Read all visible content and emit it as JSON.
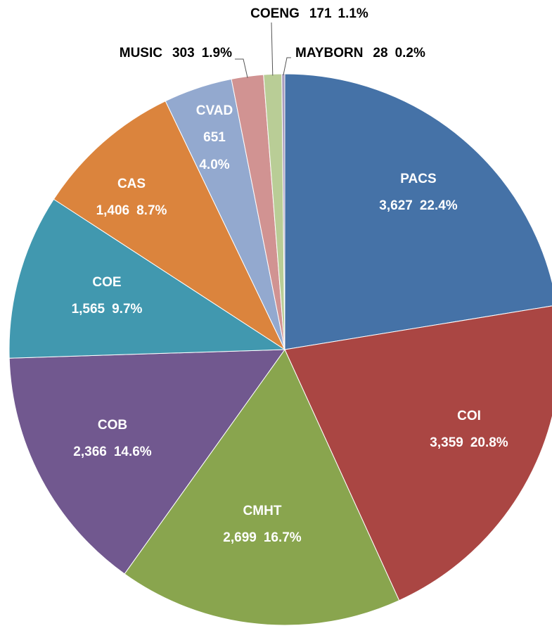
{
  "chart_data": {
    "type": "pie",
    "categories": [
      "PACS",
      "COI",
      "CMHT",
      "COB",
      "COE",
      "CAS",
      "CVAD",
      "MUSIC",
      "COENG",
      "MAYBORN"
    ],
    "values": [
      3627,
      3359,
      2699,
      2366,
      1565,
      1406,
      651,
      303,
      171,
      28
    ],
    "value_labels": [
      "3,627",
      "3,359",
      "2,699",
      "2,366",
      "1,565",
      "1,406",
      "651",
      "303",
      "171",
      "28"
    ],
    "percent_labels": [
      "22.4%",
      "20.8%",
      "16.7%",
      "14.6%",
      "9.7%",
      "8.7%",
      "4.0%",
      "1.9%",
      "1.1%",
      "0.2%"
    ],
    "colors": [
      "#4572a7",
      "#aa4643",
      "#89a54e",
      "#71588f",
      "#4198af",
      "#db843d",
      "#93a9cf",
      "#d19392",
      "#b9cd96",
      "#a99bbd"
    ]
  }
}
